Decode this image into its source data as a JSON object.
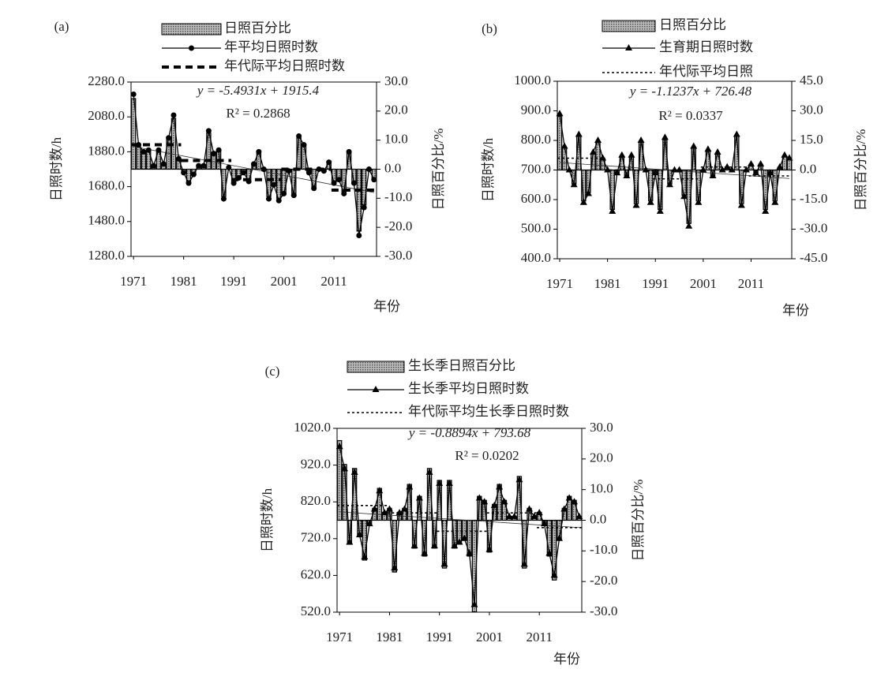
{
  "chart_data": [
    {
      "type": "combo",
      "panel_label": "(a)",
      "xlabel": "年份",
      "ylabel": "日照时数/h",
      "y2label": "日照百分比/%",
      "equation": "y = -5.4931x + 1915.4",
      "r2": "R² = 0.2868",
      "trend": {
        "slope": -5.4931,
        "intercept": 1915.4
      },
      "x": [
        1971,
        1972,
        1973,
        1974,
        1975,
        1976,
        1977,
        1978,
        1979,
        1980,
        1981,
        1982,
        1983,
        1984,
        1985,
        1986,
        1987,
        1988,
        1989,
        1990,
        1991,
        1992,
        1993,
        1994,
        1995,
        1996,
        1997,
        1998,
        1999,
        2000,
        2001,
        2002,
        2003,
        2004,
        2005,
        2006,
        2007,
        2008,
        2009,
        2010,
        2011,
        2012,
        2013,
        2014,
        2015,
        2016,
        2017,
        2018,
        2019
      ],
      "xlim": [
        1970.5,
        2019.5
      ],
      "xticks": [
        1971,
        1981,
        1991,
        2001,
        2011
      ],
      "ylim": [
        1280,
        2280
      ],
      "yticks": [
        {
          "value": 1280,
          "label": "1280.0"
        },
        {
          "value": 1480,
          "label": "1480.0"
        },
        {
          "value": 1680,
          "label": "1680.0"
        },
        {
          "value": 1880,
          "label": "1880.0"
        },
        {
          "value": 2080,
          "label": "2080.0"
        },
        {
          "value": 2280,
          "label": "2280.0"
        }
      ],
      "y2lim": [
        -30,
        30
      ],
      "y2ticks": [
        {
          "value": -30,
          "label": "-30.0"
        },
        {
          "value": -20,
          "label": "-20.0"
        },
        {
          "value": -10,
          "label": "-10.0"
        },
        {
          "value": 0,
          "label": "0.0"
        },
        {
          "value": 10,
          "label": "10.0"
        },
        {
          "value": 20,
          "label": "20.0"
        },
        {
          "value": 30,
          "label": "30.0"
        }
      ],
      "series": [
        {
          "name": "日照百分比",
          "type": "bar",
          "axis": "y2",
          "color": "#9a9a9a",
          "values": [
            24.3,
            8.0,
            5.7,
            6.3,
            1.2,
            6.3,
            1.8,
            10.2,
            17.5,
            3.5,
            -1.0,
            -4.4,
            -1.6,
            1.2,
            1.2,
            12.5,
            5.2,
            6.3,
            -9.4,
            0.7,
            -4.4,
            -2.7,
            -1.0,
            -3.8,
            1.8,
            5.7,
            0.1,
            -9.4,
            -4.9,
            -10.0,
            -7.8,
            -0.4,
            -8.3,
            10.8,
            8.0,
            -1.0,
            -6.1,
            0.1,
            -0.4,
            2.4,
            -4.4,
            -3.3,
            -7.8,
            5.7,
            -4.4,
            -21.3,
            -12.3,
            0.1,
            -3.3
          ]
        },
        {
          "name": "年平均日照时数",
          "type": "line",
          "marker": "circle",
          "color": "#000000",
          "values": [
            2210,
            1920,
            1880,
            1890,
            1800,
            1890,
            1810,
            1960,
            2090,
            1840,
            1760,
            1700,
            1750,
            1800,
            1800,
            2000,
            1870,
            1890,
            1610,
            1790,
            1700,
            1730,
            1760,
            1710,
            1810,
            1880,
            1780,
            1610,
            1690,
            1600,
            1640,
            1770,
            1630,
            1970,
            1920,
            1760,
            1670,
            1780,
            1770,
            1820,
            1700,
            1720,
            1640,
            1880,
            1700,
            1400,
            1560,
            1780,
            1720
          ]
        },
        {
          "name": "年代际平均日照时数",
          "type": "step",
          "line_style": "dashed",
          "color": "#000000",
          "x": [
            1971,
            1981,
            1991,
            2001,
            2011
          ],
          "values": [
            1920,
            1830,
            1720,
            1780,
            1660
          ]
        }
      ]
    },
    {
      "type": "combo",
      "panel_label": "(b)",
      "xlabel": "年份",
      "ylabel": "日照时数/h",
      "y2label": "日照百分比/%",
      "equation": "y = -1.1237x + 726.48",
      "r2": "R² = 0.0337",
      "trend": {
        "slope": -1.1237,
        "intercept": 726.48
      },
      "x": [
        1971,
        1972,
        1973,
        1974,
        1975,
        1976,
        1977,
        1978,
        1979,
        1980,
        1981,
        1982,
        1983,
        1984,
        1985,
        1986,
        1987,
        1988,
        1989,
        1990,
        1991,
        1992,
        1993,
        1994,
        1995,
        1996,
        1997,
        1998,
        1999,
        2000,
        2001,
        2002,
        2003,
        2004,
        2005,
        2006,
        2007,
        2008,
        2009,
        2010,
        2011,
        2012,
        2013,
        2014,
        2015,
        2016,
        2017,
        2018,
        2019
      ],
      "xlim": [
        1970.5,
        2019.5
      ],
      "xticks": [
        1971,
        1981,
        1991,
        2001,
        2011
      ],
      "ylim": [
        400,
        1000
      ],
      "yticks": [
        {
          "value": 400,
          "label": "400.0"
        },
        {
          "value": 500,
          "label": "500.0"
        },
        {
          "value": 600,
          "label": "600.0"
        },
        {
          "value": 700,
          "label": "700.0"
        },
        {
          "value": 800,
          "label": "800.0"
        },
        {
          "value": 900,
          "label": "900.0"
        },
        {
          "value": 1000,
          "label": "1000.0"
        }
      ],
      "y2lim": [
        -45,
        45
      ],
      "y2ticks": [
        {
          "value": -45,
          "label": "-45.0"
        },
        {
          "value": -30,
          "label": "-30.0"
        },
        {
          "value": -15,
          "label": "-15.0"
        },
        {
          "value": 0,
          "label": "0.0"
        },
        {
          "value": 15,
          "label": "15.0"
        },
        {
          "value": 30,
          "label": "30.0"
        },
        {
          "value": 45,
          "label": "45.0"
        }
      ],
      "series": [
        {
          "name": "日照百分比",
          "type": "bar",
          "axis": "y2",
          "color": "#9a9a9a",
          "values": [
            27.1,
            11.4,
            0,
            -7.1,
            17.1,
            -15.7,
            -11.4,
            8.6,
            14.3,
            5.7,
            0,
            -20,
            -1.4,
            7.1,
            -2.9,
            7.1,
            -17.1,
            14.3,
            0,
            -15.7,
            -1.4,
            -20,
            15.7,
            -7.1,
            0,
            0,
            -12.9,
            -27.1,
            11.4,
            -15.7,
            0,
            10,
            -2.9,
            8.6,
            0,
            1.4,
            0,
            17.1,
            -17.1,
            0,
            2.9,
            -1.4,
            2.9,
            -20,
            -1.4,
            -15.7,
            1.4,
            7.1,
            5.7
          ]
        },
        {
          "name": "生育期日照时数",
          "type": "line",
          "marker": "triangle",
          "color": "#000000",
          "values": [
            890,
            780,
            700,
            650,
            820,
            590,
            620,
            760,
            800,
            740,
            700,
            560,
            690,
            750,
            680,
            750,
            580,
            800,
            700,
            590,
            690,
            560,
            810,
            650,
            700,
            700,
            610,
            510,
            780,
            590,
            700,
            770,
            680,
            760,
            700,
            710,
            700,
            820,
            580,
            700,
            720,
            690,
            720,
            560,
            690,
            590,
            710,
            750,
            740
          ]
        },
        {
          "name": "年代际平均日照",
          "type": "step",
          "line_style": "dotted",
          "color": "#000000",
          "x": [
            1971,
            1981,
            1991,
            2001,
            2011
          ],
          "values": [
            740,
            700,
            670,
            710,
            680
          ]
        }
      ]
    },
    {
      "type": "combo",
      "panel_label": "(c)",
      "xlabel": "年份",
      "ylabel": "日照时数/h",
      "y2label": "日照百分比/%",
      "equation": "y = -0.8894x + 793.68",
      "r2": "R² = 0.0202",
      "trend": {
        "slope": -0.8894,
        "intercept": 793.68
      },
      "x": [
        1971,
        1972,
        1973,
        1974,
        1975,
        1976,
        1977,
        1978,
        1979,
        1980,
        1981,
        1982,
        1983,
        1984,
        1985,
        1986,
        1987,
        1988,
        1989,
        1990,
        1991,
        1992,
        1993,
        1994,
        1995,
        1996,
        1997,
        1998,
        1999,
        2000,
        2001,
        2002,
        2003,
        2004,
        2005,
        2006,
        2007,
        2008,
        2009,
        2010,
        2011,
        2012,
        2013,
        2014,
        2015,
        2016,
        2017,
        2018,
        2019
      ],
      "xlim": [
        1970.5,
        2019.5
      ],
      "xticks": [
        1971,
        1981,
        1991,
        2001,
        2011
      ],
      "ylim": [
        520,
        1020
      ],
      "yticks": [
        {
          "value": 520,
          "label": "520.0"
        },
        {
          "value": 620,
          "label": "620.0"
        },
        {
          "value": 720,
          "label": "720.0"
        },
        {
          "value": 820,
          "label": "820.0"
        },
        {
          "value": 920,
          "label": "920.0"
        },
        {
          "value": 1020,
          "label": "1020.0"
        }
      ],
      "y2lim": [
        -30,
        30
      ],
      "y2ticks": [
        {
          "value": -30,
          "label": "-30.0"
        },
        {
          "value": -20,
          "label": "-20.0"
        },
        {
          "value": -10,
          "label": "-10.0"
        },
        {
          "value": 0,
          "label": "0.0"
        },
        {
          "value": 10,
          "label": "10.0"
        },
        {
          "value": 20,
          "label": "20.0"
        },
        {
          "value": 30,
          "label": "30.0"
        }
      ],
      "series": [
        {
          "name": "生长季日照百分比",
          "type": "bar",
          "axis": "y2",
          "color": "#9a9a9a",
          "values": [
            26.0,
            18.2,
            -7.8,
            16.9,
            -5.2,
            -13.0,
            -1.3,
            3.9,
            10.4,
            2.6,
            3.9,
            -16.9,
            2.6,
            3.9,
            11.7,
            -9.1,
            7.8,
            -11.7,
            16.9,
            -9.1,
            13.0,
            -15.6,
            13.0,
            -9.1,
            -7.8,
            -6.5,
            -11.7,
            -29.9,
            7.8,
            6.5,
            -10.4,
            5.2,
            11.7,
            6.5,
            1.3,
            1.3,
            14.3,
            -15.6,
            3.9,
            1.3,
            2.6,
            -1.3,
            -11.7,
            -19.5,
            -6.5,
            3.9,
            7.8,
            6.5,
            1.3
          ]
        },
        {
          "name": "生长季平均日照时数",
          "type": "line",
          "marker": "triangle",
          "color": "#000000",
          "values": [
            970,
            910,
            710,
            900,
            730,
            670,
            760,
            800,
            850,
            790,
            800,
            640,
            790,
            800,
            860,
            700,
            830,
            680,
            900,
            700,
            870,
            650,
            870,
            700,
            710,
            720,
            680,
            540,
            830,
            820,
            690,
            810,
            860,
            820,
            780,
            780,
            880,
            650,
            800,
            780,
            790,
            760,
            680,
            620,
            720,
            800,
            830,
            820,
            780
          ]
        },
        {
          "name": "年代际平均生长季日照时数",
          "type": "step",
          "line_style": "dotted",
          "color": "#000000",
          "x": [
            1971,
            1981,
            1991,
            2001,
            2011
          ],
          "values": [
            810,
            790,
            740,
            790,
            750
          ]
        }
      ]
    }
  ]
}
